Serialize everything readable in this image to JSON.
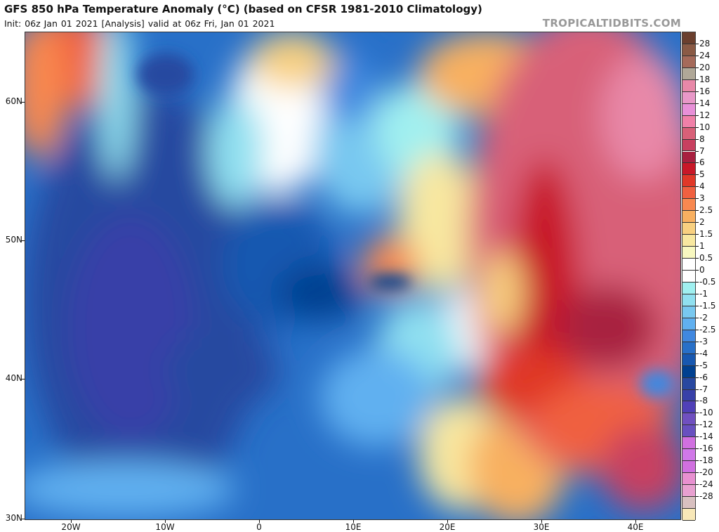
{
  "header": {
    "title": "GFS 850 hPa Temperature Anomaly (°C) (based on CFSR 1981-2010 Climatology)",
    "subtitle": "Init: 06z Jan 01 2021   [Analysis]   valid at 06z Fri, Jan 01 2021",
    "brand": "TROPICALTIDBITS.COM"
  },
  "map": {
    "lat_labels": [
      "60N",
      "50N",
      "40N",
      "30N"
    ],
    "lon_labels": [
      "20W",
      "10W",
      "0",
      "10E",
      "20E",
      "30E",
      "40E"
    ]
  },
  "colorbar": {
    "labels": [
      "28",
      "24",
      "20",
      "18",
      "16",
      "14",
      "12",
      "10",
      "8",
      "7",
      "6",
      "5",
      "4",
      "3",
      "2.5",
      "2",
      "1.5",
      "1",
      "0.5",
      "0",
      "-0.5",
      "-1",
      "-1.5",
      "-2",
      "-2.5",
      "-3",
      "-4",
      "-5",
      "-6",
      "-7",
      "-8",
      "-10",
      "-12",
      "-14",
      "-16",
      "-18",
      "-20",
      "-24",
      "-28"
    ],
    "colors": [
      "#6b3f2e",
      "#8a5a45",
      "#a56a5a",
      "#b0a898",
      "#e888a8",
      "#e898c8",
      "#e890d8",
      "#f080a8",
      "#d86078",
      "#c84060",
      "#a82040",
      "#c81828",
      "#e03828",
      "#f06040",
      "#f88850",
      "#f8b060",
      "#f8d080",
      "#f8e8a0",
      "#f8f8c0",
      "#ffffff",
      "#ffffff",
      "#a0f0f0",
      "#90e0f0",
      "#78c8f0",
      "#60b0f0",
      "#4088e0",
      "#2870c8",
      "#1858b0",
      "#004090",
      "#2848a0",
      "#3840a8",
      "#5040b8",
      "#7050c0",
      "#6850c0",
      "#d070e0",
      "#d078e8",
      "#d070e0",
      "#e890d0",
      "#e8a0d0",
      "#d8c0c0",
      "#f8e8b8"
    ]
  }
}
